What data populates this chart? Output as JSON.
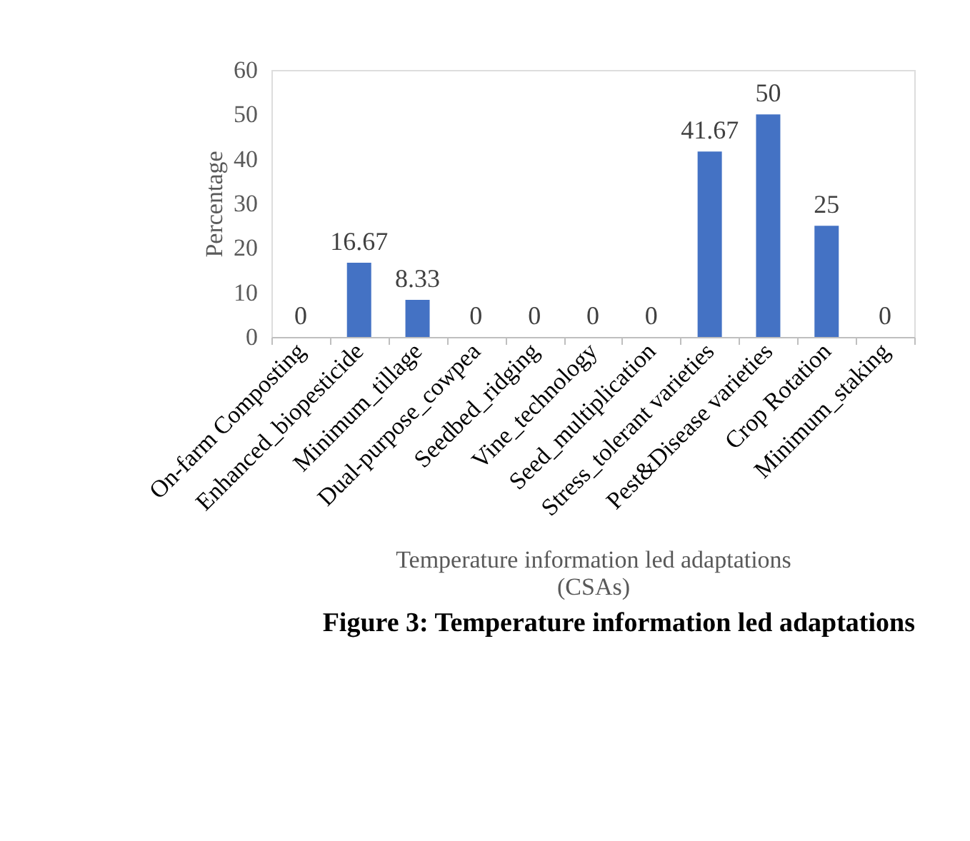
{
  "chart_data": {
    "type": "bar",
    "categories": [
      "On-farm Composting",
      "Enhanced_biopesticide",
      "Minimum_tillage",
      "Dual-purpose_cowpea",
      "Seedbed_ridging",
      "Vine_technology",
      "Seed_multiplication",
      "Stress_tolerant varieties",
      "Pest&Disease varieties",
      "Crop Rotation",
      "Minimum_staking"
    ],
    "values": [
      0,
      16.67,
      8.33,
      0,
      0,
      0,
      0,
      41.67,
      50,
      25,
      0
    ],
    "color": "#4472c4",
    "ylim": [
      0,
      60
    ],
    "yticks": [
      0,
      10,
      20,
      30,
      40,
      50,
      60
    ],
    "grid": false,
    "data_labels": true,
    "ylabel": "Percentage",
    "xlabel": "Temperature information led adaptations\n(CSAs)",
    "annotations": [
      "Figure 3: Temperature information led adaptations"
    ]
  }
}
